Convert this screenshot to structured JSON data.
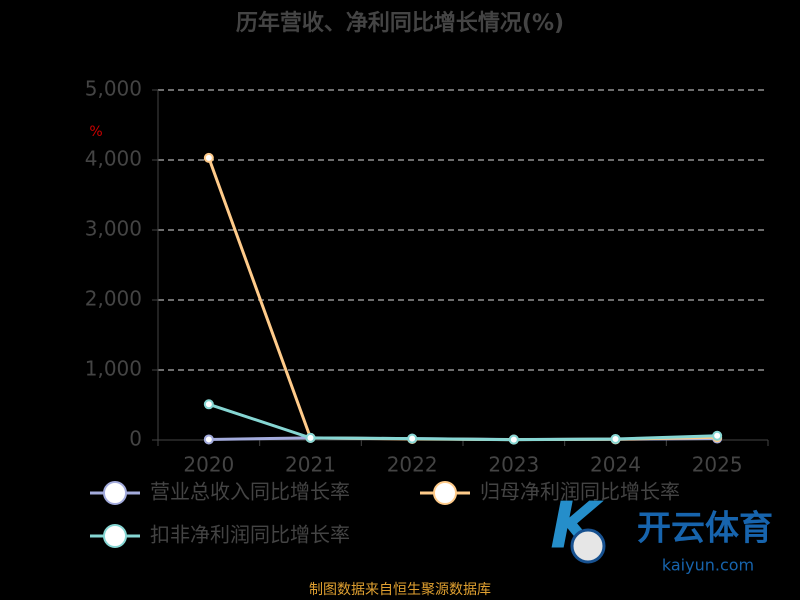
{
  "chart_data": {
    "type": "line",
    "title": "历年营收、净利同比增长情况(%)",
    "y_unit": "%",
    "categories": [
      "2020",
      "2021",
      "2022",
      "2023",
      "2024",
      "2025"
    ],
    "series": [
      {
        "name": "营业总收入同比增长率",
        "color": "#a3abdc",
        "values": [
          8,
          30,
          19,
          7,
          10,
          21
        ]
      },
      {
        "name": "归母净利润同比增长率",
        "color": "#ffcb8a",
        "values": [
          4030,
          30,
          15,
          5,
          10,
          40
        ]
      },
      {
        "name": "扣非净利润同比增长率",
        "color": "#86d6d3",
        "values": [
          510,
          30,
          20,
          5,
          15,
          60
        ]
      }
    ],
    "ylim": [
      0,
      5000
    ],
    "yticks": [
      0,
      {
        "value": 1000,
        "label": "1,000"
      },
      {
        "value": 2000,
        "label": "2,000"
      },
      {
        "value": 3000,
        "label": "3,000"
      },
      {
        "value": 4000,
        "label": "4,000"
      },
      {
        "value": 5000,
        "label": "5,000"
      }
    ],
    "grid": true,
    "source": "制图数据来自恒生聚源数据库",
    "watermark": {
      "brand": "开云体育",
      "site": "kaiyun.com"
    }
  }
}
